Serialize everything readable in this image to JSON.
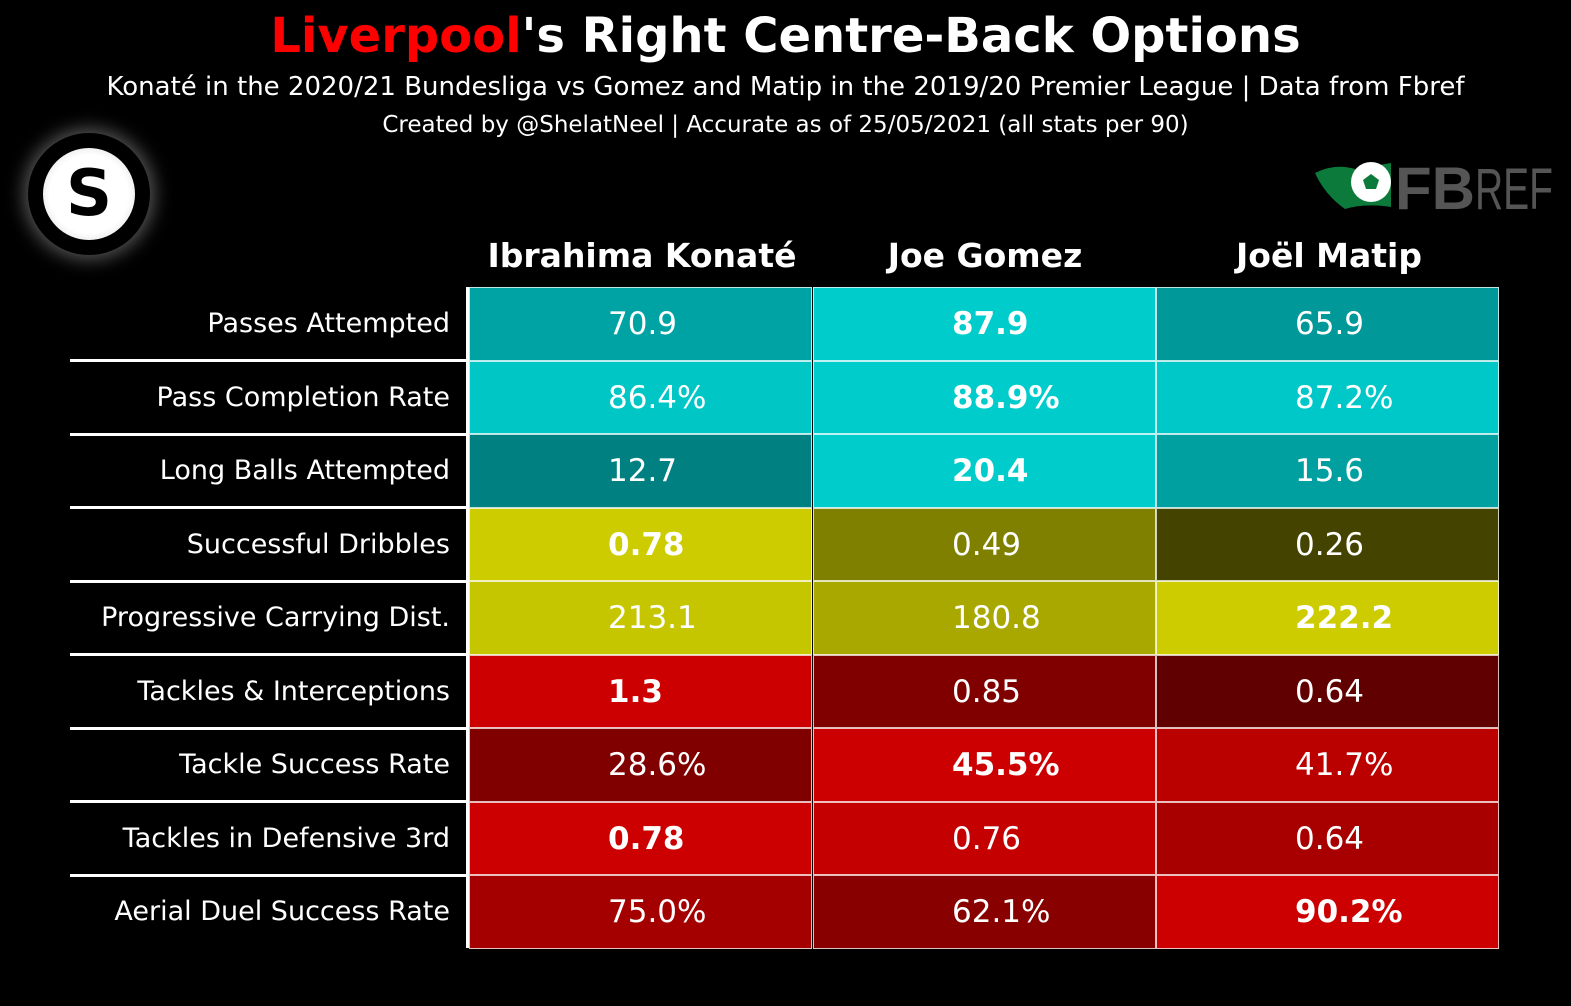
{
  "title": {
    "highlight": "Liverpool",
    "rest": "'s Right Centre-Back Options"
  },
  "subtitle": "Konaté in the 2020/21 Bundesliga vs Gomez and Matip in the 2019/20 Premier League | Data from Fbref",
  "credit": "Created by @ShelatNeel | Accurate as of 25/05/2021 (all stats per 90)",
  "logos": {
    "left": "S",
    "right": "FBREF"
  },
  "chart_data": {
    "type": "table",
    "title": "Liverpool's Right Centre-Back Options",
    "columns": [
      "Ibrahima Konaté",
      "Joe Gomez",
      "Joël Matip"
    ],
    "rows": [
      {
        "label": "Passes Attempted",
        "values": [
          "70.9",
          "87.9",
          "65.9"
        ],
        "best": 1,
        "colors": [
          "#00a3a3",
          "#00cccc",
          "#009898"
        ]
      },
      {
        "label": "Pass Completion Rate",
        "values": [
          "86.4%",
          "88.9%",
          "87.2%"
        ],
        "best": 1,
        "colors": [
          "#00c6c6",
          "#00cccc",
          "#00c8c8"
        ]
      },
      {
        "label": "Long Balls Attempted",
        "values": [
          "12.7",
          "20.4",
          "15.6"
        ],
        "best": 1,
        "colors": [
          "#008080",
          "#00cccc",
          "#00a0a0"
        ]
      },
      {
        "label": "Successful Dribbles",
        "values": [
          "0.78",
          "0.49",
          "0.26"
        ],
        "best": 0,
        "colors": [
          "#cccc00",
          "#808000",
          "#444400"
        ]
      },
      {
        "label": "Progressive Carrying Dist.",
        "values": [
          "213.1",
          "180.8",
          "222.2"
        ],
        "best": 2,
        "colors": [
          "#c6c600",
          "#a8a800",
          "#cccc00"
        ]
      },
      {
        "label": "Tackles & Interceptions",
        "values": [
          "1.3",
          "0.85",
          "0.64"
        ],
        "best": 0,
        "colors": [
          "#cc0000",
          "#800000",
          "#600000"
        ]
      },
      {
        "label": "Tackle Success Rate",
        "values": [
          "28.6%",
          "45.5%",
          "41.7%"
        ],
        "best": 1,
        "colors": [
          "#800000",
          "#cc0000",
          "#bb0000"
        ]
      },
      {
        "label": "Tackles in Defensive 3rd",
        "values": [
          "0.78",
          "0.76",
          "0.64"
        ],
        "best": 0,
        "colors": [
          "#cc0000",
          "#c40000",
          "#a80000"
        ]
      },
      {
        "label": "Aerial Duel Success Rate",
        "values": [
          "75.0%",
          "62.1%",
          "90.2%"
        ],
        "best": 2,
        "colors": [
          "#a50000",
          "#880000",
          "#cc0000"
        ]
      }
    ]
  }
}
